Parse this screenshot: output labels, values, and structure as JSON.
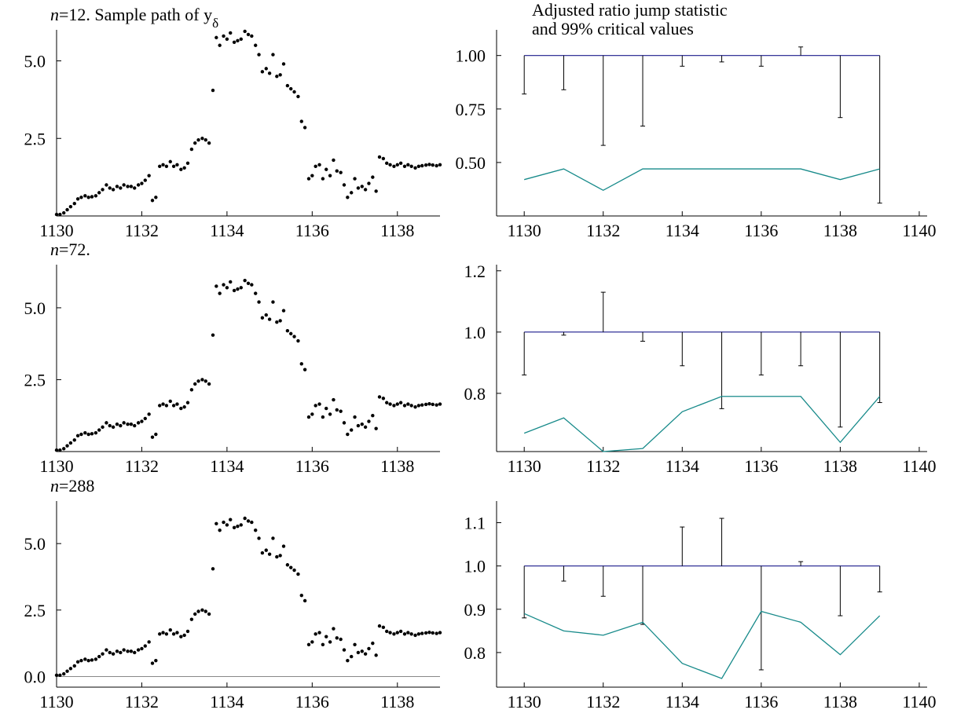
{
  "chart_data": [
    {
      "id": "l1",
      "type": "scatter",
      "title": "n=12. Sample path of yδ",
      "title_prefix": "n",
      "title_rest": "=12. Sample path of y",
      "title_sub": "δ",
      "xlim": [
        1130,
        1139
      ],
      "ylim": [
        0,
        6
      ],
      "xticks": [
        "1130",
        "1132",
        "1134",
        "1136",
        "1138"
      ],
      "yticks": [
        "2.5",
        "5.0"
      ],
      "zero_line": false,
      "marker": "dot",
      "color": "#000000",
      "series": [
        {
          "x": [
            1130.0,
            1130.08,
            1130.17,
            1130.25,
            1130.33,
            1130.42,
            1130.5,
            1130.58,
            1130.67,
            1130.75,
            1130.83,
            1130.92,
            1131.0,
            1131.08,
            1131.17,
            1131.25,
            1131.33,
            1131.42,
            1131.5,
            1131.58,
            1131.67,
            1131.75,
            1131.83,
            1131.92,
            1132.0,
            1132.08,
            1132.17,
            1132.25,
            1132.33,
            1132.42,
            1132.5,
            1132.58,
            1132.67,
            1132.75,
            1132.83,
            1132.92,
            1133.0,
            1133.08,
            1133.17,
            1133.25,
            1133.33,
            1133.42,
            1133.5,
            1133.58,
            1133.67,
            1133.75,
            1133.83,
            1133.92,
            1134.0,
            1134.08,
            1134.17,
            1134.25,
            1134.33,
            1134.42,
            1134.5,
            1134.58,
            1134.67,
            1134.75,
            1134.83,
            1134.92,
            1135.0,
            1135.08,
            1135.17,
            1135.25,
            1135.33,
            1135.42,
            1135.5,
            1135.58,
            1135.67,
            1135.75,
            1135.83,
            1135.92,
            1136.0,
            1136.08,
            1136.17,
            1136.25,
            1136.33,
            1136.42,
            1136.5,
            1136.58,
            1136.67,
            1136.75,
            1136.83,
            1136.92,
            1137.0,
            1137.08,
            1137.17,
            1137.25,
            1137.33,
            1137.42,
            1137.5,
            1137.58,
            1137.67,
            1137.75,
            1137.83,
            1137.92,
            1138.0,
            1138.08,
            1138.17,
            1138.25,
            1138.33,
            1138.42,
            1138.5,
            1138.58,
            1138.67,
            1138.75,
            1138.83,
            1138.92,
            1139.0
          ],
          "y": [
            0.05,
            0.05,
            0.1,
            0.2,
            0.3,
            0.4,
            0.55,
            0.6,
            0.65,
            0.6,
            0.62,
            0.65,
            0.75,
            0.85,
            1.0,
            0.9,
            0.85,
            0.95,
            0.9,
            1.0,
            0.95,
            0.95,
            0.9,
            1.0,
            1.05,
            1.15,
            1.3,
            0.5,
            0.6,
            1.6,
            1.65,
            1.6,
            1.75,
            1.6,
            1.65,
            1.5,
            1.55,
            1.7,
            2.15,
            2.35,
            2.45,
            2.5,
            2.45,
            2.35,
            4.05,
            5.75,
            5.5,
            5.8,
            5.7,
            5.9,
            5.6,
            5.65,
            5.7,
            5.95,
            5.85,
            5.8,
            5.5,
            5.2,
            4.65,
            4.75,
            4.6,
            5.2,
            4.5,
            4.55,
            4.9,
            4.2,
            4.1,
            4.0,
            3.85,
            3.05,
            2.85,
            1.2,
            1.3,
            1.6,
            1.65,
            1.2,
            1.5,
            1.3,
            1.8,
            1.45,
            1.4,
            1.0,
            0.6,
            0.75,
            1.2,
            0.9,
            0.95,
            0.85,
            1.05,
            1.25,
            0.8,
            1.9,
            1.85,
            1.7,
            1.65,
            1.6,
            1.65,
            1.7,
            1.6,
            1.65,
            1.6,
            1.55,
            1.6,
            1.62,
            1.64,
            1.66,
            1.64,
            1.62,
            1.65
          ]
        }
      ]
    },
    {
      "id": "r1",
      "type": "line",
      "title": "Adjusted ratio jump statistic and 99% critical values",
      "title_lines": [
        "Adjusted ratio jump statistic",
        "and 99% critical values"
      ],
      "xlim": [
        1129.3,
        1140.2
      ],
      "ylim": [
        0.25,
        1.12
      ],
      "xticks": [
        "1130",
        "1132",
        "1134",
        "1136",
        "1138",
        "1140"
      ],
      "yticks": [
        "0.50",
        "0.75",
        "1.00"
      ],
      "reference_line": 1.0,
      "stat_x": [
        1130,
        1131,
        1132,
        1133,
        1134,
        1135,
        1136,
        1137,
        1138,
        1139
      ],
      "stat_y": [
        0.82,
        0.84,
        0.58,
        0.67,
        0.95,
        0.97,
        0.95,
        1.04,
        0.71,
        0.31
      ],
      "critical_y": [
        0.42,
        0.47,
        0.37,
        0.47,
        0.47,
        0.47,
        0.47,
        0.47,
        0.42,
        0.47
      ],
      "stat_color": "#000000",
      "reference_color": "#1a1a8c",
      "critical_color": "#178a8a"
    },
    {
      "id": "l2",
      "type": "scatter",
      "title": "n=72.",
      "title_prefix": "n",
      "title_rest": "=72.",
      "title_sub": "",
      "xlim": [
        1130,
        1139
      ],
      "ylim": [
        0,
        6.5
      ],
      "xticks": [
        "1130",
        "1132",
        "1134",
        "1136",
        "1138"
      ],
      "yticks": [
        "2.5",
        "5.0"
      ],
      "zero_line": false,
      "marker": "dot",
      "color": "#000000",
      "series": [
        {
          "x": [
            1130.0,
            1130.08,
            1130.17,
            1130.25,
            1130.33,
            1130.42,
            1130.5,
            1130.58,
            1130.67,
            1130.75,
            1130.83,
            1130.92,
            1131.0,
            1131.08,
            1131.17,
            1131.25,
            1131.33,
            1131.42,
            1131.5,
            1131.58,
            1131.67,
            1131.75,
            1131.83,
            1131.92,
            1132.0,
            1132.08,
            1132.17,
            1132.25,
            1132.33,
            1132.42,
            1132.5,
            1132.58,
            1132.67,
            1132.75,
            1132.83,
            1132.92,
            1133.0,
            1133.08,
            1133.17,
            1133.25,
            1133.33,
            1133.42,
            1133.5,
            1133.58,
            1133.67,
            1133.75,
            1133.83,
            1133.92,
            1134.0,
            1134.08,
            1134.17,
            1134.25,
            1134.33,
            1134.42,
            1134.5,
            1134.58,
            1134.67,
            1134.75,
            1134.83,
            1134.92,
            1135.0,
            1135.08,
            1135.17,
            1135.25,
            1135.33,
            1135.42,
            1135.5,
            1135.58,
            1135.67,
            1135.75,
            1135.83,
            1135.92,
            1136.0,
            1136.08,
            1136.17,
            1136.25,
            1136.33,
            1136.42,
            1136.5,
            1136.58,
            1136.67,
            1136.75,
            1136.83,
            1136.92,
            1137.0,
            1137.08,
            1137.17,
            1137.25,
            1137.33,
            1137.42,
            1137.5,
            1137.58,
            1137.67,
            1137.75,
            1137.83,
            1137.92,
            1138.0,
            1138.08,
            1138.17,
            1138.25,
            1138.33,
            1138.42,
            1138.5,
            1138.58,
            1138.67,
            1138.75,
            1138.83,
            1138.92,
            1139.0
          ],
          "y": [
            0.05,
            0.05,
            0.1,
            0.2,
            0.3,
            0.4,
            0.55,
            0.6,
            0.65,
            0.6,
            0.62,
            0.65,
            0.75,
            0.85,
            1.0,
            0.9,
            0.85,
            0.95,
            0.9,
            1.0,
            0.95,
            0.95,
            0.9,
            1.0,
            1.05,
            1.15,
            1.3,
            0.5,
            0.6,
            1.6,
            1.65,
            1.6,
            1.75,
            1.6,
            1.65,
            1.5,
            1.55,
            1.7,
            2.15,
            2.35,
            2.45,
            2.5,
            2.45,
            2.35,
            4.05,
            5.75,
            5.5,
            5.8,
            5.7,
            5.9,
            5.6,
            5.65,
            5.7,
            5.95,
            5.85,
            5.8,
            5.5,
            5.2,
            4.65,
            4.75,
            4.6,
            5.2,
            4.5,
            4.55,
            4.9,
            4.2,
            4.1,
            4.0,
            3.85,
            3.05,
            2.85,
            1.2,
            1.3,
            1.6,
            1.65,
            1.2,
            1.5,
            1.3,
            1.8,
            1.45,
            1.4,
            1.0,
            0.6,
            0.75,
            1.2,
            0.9,
            0.95,
            0.85,
            1.05,
            1.25,
            0.8,
            1.9,
            1.85,
            1.7,
            1.65,
            1.6,
            1.65,
            1.7,
            1.6,
            1.65,
            1.6,
            1.55,
            1.6,
            1.62,
            1.64,
            1.66,
            1.64,
            1.62,
            1.65
          ]
        }
      ]
    },
    {
      "id": "r2",
      "type": "line",
      "title": "",
      "title_lines": [],
      "xlim": [
        1129.3,
        1140.2
      ],
      "ylim": [
        0.61,
        1.22
      ],
      "xticks": [
        "1130",
        "1132",
        "1134",
        "1136",
        "1138",
        "1140"
      ],
      "yticks": [
        "0.8",
        "1.0",
        "1.2"
      ],
      "reference_line": 1.0,
      "stat_x": [
        1130,
        1131,
        1132,
        1133,
        1134,
        1135,
        1136,
        1137,
        1138,
        1139
      ],
      "stat_y": [
        0.86,
        0.99,
        1.13,
        0.97,
        0.89,
        0.75,
        0.86,
        0.89,
        0.69,
        0.77
      ],
      "critical_y": [
        0.67,
        0.72,
        0.61,
        0.62,
        0.74,
        0.79,
        0.79,
        0.79,
        0.64,
        0.79
      ],
      "stat_color": "#000000",
      "reference_color": "#1a1a8c",
      "critical_color": "#178a8a"
    },
    {
      "id": "l3",
      "type": "scatter",
      "title": "n=288",
      "title_prefix": "n",
      "title_rest": "=288",
      "title_sub": "",
      "xlim": [
        1130,
        1139
      ],
      "ylim": [
        -0.4,
        6.6
      ],
      "xticks": [
        "1130",
        "1132",
        "1134",
        "1136",
        "1138"
      ],
      "yticks": [
        "0.0",
        "2.5",
        "5.0"
      ],
      "zero_line": true,
      "marker": "dot",
      "color": "#000000",
      "series": [
        {
          "x": [
            1130.0,
            1130.08,
            1130.17,
            1130.25,
            1130.33,
            1130.42,
            1130.5,
            1130.58,
            1130.67,
            1130.75,
            1130.83,
            1130.92,
            1131.0,
            1131.08,
            1131.17,
            1131.25,
            1131.33,
            1131.42,
            1131.5,
            1131.58,
            1131.67,
            1131.75,
            1131.83,
            1131.92,
            1132.0,
            1132.08,
            1132.17,
            1132.25,
            1132.33,
            1132.42,
            1132.5,
            1132.58,
            1132.67,
            1132.75,
            1132.83,
            1132.92,
            1133.0,
            1133.08,
            1133.17,
            1133.25,
            1133.33,
            1133.42,
            1133.5,
            1133.58,
            1133.67,
            1133.75,
            1133.83,
            1133.92,
            1134.0,
            1134.08,
            1134.17,
            1134.25,
            1134.33,
            1134.42,
            1134.5,
            1134.58,
            1134.67,
            1134.75,
            1134.83,
            1134.92,
            1135.0,
            1135.08,
            1135.17,
            1135.25,
            1135.33,
            1135.42,
            1135.5,
            1135.58,
            1135.67,
            1135.75,
            1135.83,
            1135.92,
            1136.0,
            1136.08,
            1136.17,
            1136.25,
            1136.33,
            1136.42,
            1136.5,
            1136.58,
            1136.67,
            1136.75,
            1136.83,
            1136.92,
            1137.0,
            1137.08,
            1137.17,
            1137.25,
            1137.33,
            1137.42,
            1137.5,
            1137.58,
            1137.67,
            1137.75,
            1137.83,
            1137.92,
            1138.0,
            1138.08,
            1138.17,
            1138.25,
            1138.33,
            1138.42,
            1138.5,
            1138.58,
            1138.67,
            1138.75,
            1138.83,
            1138.92,
            1139.0
          ],
          "y": [
            0.05,
            0.05,
            0.1,
            0.2,
            0.3,
            0.4,
            0.55,
            0.6,
            0.65,
            0.6,
            0.62,
            0.65,
            0.75,
            0.85,
            1.0,
            0.9,
            0.85,
            0.95,
            0.9,
            1.0,
            0.95,
            0.95,
            0.9,
            1.0,
            1.05,
            1.15,
            1.3,
            0.5,
            0.6,
            1.6,
            1.65,
            1.6,
            1.75,
            1.6,
            1.65,
            1.5,
            1.55,
            1.7,
            2.15,
            2.35,
            2.45,
            2.5,
            2.45,
            2.35,
            4.05,
            5.75,
            5.5,
            5.8,
            5.7,
            5.9,
            5.6,
            5.65,
            5.7,
            5.95,
            5.85,
            5.8,
            5.5,
            5.2,
            4.65,
            4.75,
            4.6,
            5.2,
            4.5,
            4.55,
            4.9,
            4.2,
            4.1,
            4.0,
            3.85,
            3.05,
            2.85,
            1.2,
            1.3,
            1.6,
            1.65,
            1.2,
            1.5,
            1.3,
            1.8,
            1.45,
            1.4,
            1.0,
            0.6,
            0.75,
            1.2,
            0.9,
            0.95,
            0.85,
            1.05,
            1.25,
            0.8,
            1.9,
            1.85,
            1.7,
            1.65,
            1.6,
            1.65,
            1.7,
            1.6,
            1.65,
            1.6,
            1.55,
            1.6,
            1.62,
            1.64,
            1.66,
            1.64,
            1.62,
            1.65
          ]
        }
      ]
    },
    {
      "id": "r3",
      "type": "line",
      "title": "",
      "title_lines": [],
      "xlim": [
        1129.3,
        1140.2
      ],
      "ylim": [
        0.72,
        1.15
      ],
      "xticks": [
        "1130",
        "1132",
        "1134",
        "1136",
        "1138",
        "1140"
      ],
      "yticks": [
        "0.8",
        "0.9",
        "1.0",
        "1.1"
      ],
      "reference_line": 1.0,
      "stat_x": [
        1130,
        1131,
        1132,
        1133,
        1134,
        1135,
        1136,
        1137,
        1138,
        1139
      ],
      "stat_y": [
        0.88,
        0.965,
        0.93,
        0.865,
        1.09,
        1.11,
        0.76,
        1.01,
        0.885,
        0.94
      ],
      "critical_y": [
        0.89,
        0.85,
        0.84,
        0.87,
        0.775,
        0.74,
        0.895,
        0.87,
        0.795,
        0.885
      ],
      "stat_color": "#000000",
      "reference_color": "#1a1a8c",
      "critical_color": "#178a8a"
    }
  ]
}
